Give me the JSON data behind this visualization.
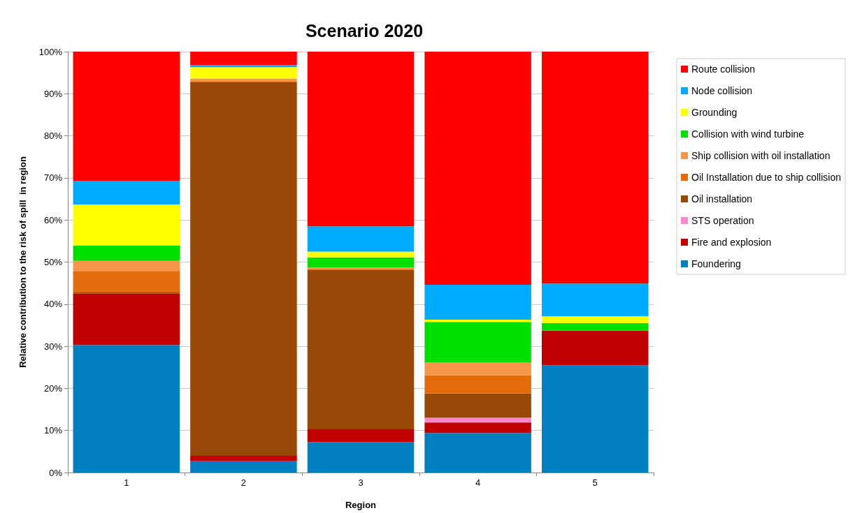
{
  "chart_data": {
    "type": "bar",
    "title": "Scenario 2020",
    "xlabel": "Region",
    "ylabel": "Relative contribution to the risk of spill  in region",
    "categories": [
      "1",
      "2",
      "3",
      "4",
      "5"
    ],
    "stacked": true,
    "legend": "right",
    "grid": "y",
    "ylim": [
      0,
      100
    ],
    "yticks": [
      {
        "value": 0,
        "label": "0%"
      },
      {
        "value": 10,
        "label": "10%"
      },
      {
        "value": 20,
        "label": "20%"
      },
      {
        "value": 30,
        "label": "30%"
      },
      {
        "value": 40,
        "label": "40%"
      },
      {
        "value": 50,
        "label": "50%"
      },
      {
        "value": 60,
        "label": "60%"
      },
      {
        "value": 70,
        "label": "70%"
      },
      {
        "value": 80,
        "label": "80%"
      },
      {
        "value": 90,
        "label": "90%"
      },
      {
        "value": 100,
        "label": "100%"
      }
    ],
    "series": [
      {
        "name": "Foundering",
        "color": "#0080c0",
        "values": [
          30.3,
          2.7,
          7.2,
          9.4,
          25.5
        ]
      },
      {
        "name": "Fire and explosion",
        "color": "#c00000",
        "values": [
          12.2,
          1.3,
          3.1,
          2.5,
          8.2
        ]
      },
      {
        "name": "STS operation",
        "color": "#ff88cc",
        "values": [
          0,
          0,
          0,
          1.1,
          0
        ]
      },
      {
        "name": "Oil installation",
        "color": "#984807",
        "values": [
          0.3,
          88.7,
          37.8,
          5.8,
          0
        ]
      },
      {
        "name": "Oil Installation due to ship collision",
        "color": "#e46c0a",
        "values": [
          5.1,
          0.3,
          0.3,
          4.3,
          0
        ]
      },
      {
        "name": "Ship collision with oil installation",
        "color": "#f79646",
        "values": [
          2.4,
          0.6,
          0.3,
          3.0,
          0
        ]
      },
      {
        "name": "Collision with wind turbine",
        "color": "#00e000",
        "values": [
          3.6,
          0,
          2.4,
          9.7,
          1.8
        ]
      },
      {
        "name": "Grounding",
        "color": "#ffff00",
        "values": [
          9.8,
          2.7,
          1.4,
          0.5,
          1.6
        ]
      },
      {
        "name": "Node collision",
        "color": "#00aaff",
        "values": [
          5.6,
          0.5,
          6.0,
          8.3,
          7.8
        ]
      },
      {
        "name": "Route collision",
        "color": "#ff0000",
        "values": [
          30.7,
          3.2,
          41.5,
          55.4,
          55.1
        ]
      }
    ]
  }
}
